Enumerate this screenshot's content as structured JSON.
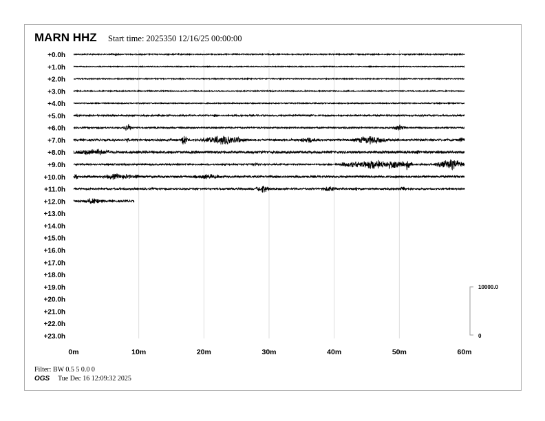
{
  "header": {
    "station": "MARN HHZ",
    "start_time": "Start time: 2025350 12/16/25 00:00:00"
  },
  "footer": {
    "filter": "Filter: BW 0.5 5 0.0 0",
    "org": "OGS",
    "generated": "Tue Dec 16 12:09:32 2025"
  },
  "chart_data": {
    "type": "line",
    "subtype": "helicorder",
    "row_labels": [
      "+0.0h",
      "+1.0h",
      "+2.0h",
      "+3.0h",
      "+4.0h",
      "+5.0h",
      "+6.0h",
      "+7.0h",
      "+8.0h",
      "+9.0h",
      "+10.0h",
      "+11.0h",
      "+12.0h",
      "+13.0h",
      "+14.0h",
      "+15.0h",
      "+16.0h",
      "+17.0h",
      "+18.0h",
      "+19.0h",
      "+20.0h",
      "+21.0h",
      "+22.0h",
      "+23.0h"
    ],
    "x_ticks": [
      "0m",
      "10m",
      "20m",
      "30m",
      "40m",
      "50m",
      "60m"
    ],
    "xlim": [
      0,
      60
    ],
    "scale": {
      "top_label": "10000.0",
      "bottom_label": "0"
    },
    "grid": true,
    "trace_color": "#000000",
    "grid_color": "#dddddd",
    "data_end": {
      "row": 12,
      "minute": 9.3
    },
    "base_noise": [
      0.6,
      0.4,
      0.5,
      0.5,
      0.5,
      0.8,
      0.7,
      1.0,
      1.2,
      0.8,
      1.0,
      0.9,
      1.0
    ],
    "bursts": [
      {
        "row": 0,
        "start": 5.5,
        "end": 7,
        "amp": 1.5
      },
      {
        "row": 5,
        "start": 0,
        "end": 1,
        "amp": 1.5
      },
      {
        "row": 5,
        "start": 21,
        "end": 22,
        "amp": 1.6
      },
      {
        "row": 5,
        "start": 36,
        "end": 37,
        "amp": 1.3
      },
      {
        "row": 6,
        "start": 7.5,
        "end": 9,
        "amp": 4
      },
      {
        "row": 6,
        "start": 49,
        "end": 51,
        "amp": 3
      },
      {
        "row": 7,
        "start": 8,
        "end": 8.5,
        "amp": 2.5
      },
      {
        "row": 7,
        "start": 16.5,
        "end": 17.5,
        "amp": 6
      },
      {
        "row": 7,
        "start": 19.5,
        "end": 26.5,
        "amp": 4.5
      },
      {
        "row": 7,
        "start": 34.5,
        "end": 37.5,
        "amp": 3
      },
      {
        "row": 7,
        "start": 43,
        "end": 48,
        "amp": 4
      },
      {
        "row": 7,
        "start": 59,
        "end": 60,
        "amp": 3
      },
      {
        "row": 8,
        "start": 0,
        "end": 6,
        "amp": 3.5
      },
      {
        "row": 8,
        "start": 52.5,
        "end": 53,
        "amp": 3
      },
      {
        "row": 9,
        "start": 27,
        "end": 29,
        "amp": 1.8
      },
      {
        "row": 9,
        "start": 41,
        "end": 52,
        "amp": 4.5
      },
      {
        "row": 9,
        "start": 51,
        "end": 51.5,
        "amp": 7
      },
      {
        "row": 9,
        "start": 55.5,
        "end": 60,
        "amp": 5
      },
      {
        "row": 10,
        "start": 0,
        "end": 0.8,
        "amp": 3
      },
      {
        "row": 10,
        "start": 4,
        "end": 10,
        "amp": 3
      },
      {
        "row": 10,
        "start": 9.5,
        "end": 10,
        "amp": 4
      },
      {
        "row": 10,
        "start": 18,
        "end": 23,
        "amp": 2.5
      },
      {
        "row": 11,
        "start": 28,
        "end": 30,
        "amp": 4
      },
      {
        "row": 11,
        "start": 38,
        "end": 40.5,
        "amp": 2.8
      },
      {
        "row": 11,
        "start": 43,
        "end": 44,
        "amp": 2.5
      },
      {
        "row": 11,
        "start": 50,
        "end": 51,
        "amp": 2.5
      },
      {
        "row": 12,
        "start": 1.5,
        "end": 4.5,
        "amp": 3
      }
    ]
  }
}
